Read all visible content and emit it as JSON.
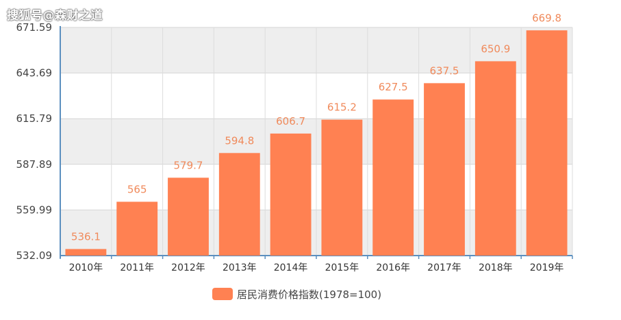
{
  "watermark": "搜狐号@森财之道",
  "chart_data": {
    "type": "bar",
    "categories": [
      "2010年",
      "2011年",
      "2012年",
      "2013年",
      "2014年",
      "2015年",
      "2016年",
      "2017年",
      "2018年",
      "2019年"
    ],
    "series": [
      {
        "name": "居民消费价格指数(1978=100)",
        "values": [
          536.1,
          565,
          579.7,
          594.8,
          606.7,
          615.2,
          627.5,
          637.5,
          650.9,
          669.8
        ]
      }
    ],
    "data_labels": [
      "536.1",
      "565",
      "579.7",
      "594.8",
      "606.7",
      "615.2",
      "627.5",
      "637.5",
      "650.9",
      "669.8"
    ],
    "y_ticks": [
      "532.09",
      "559.99",
      "587.89",
      "615.79",
      "643.69",
      "671.59"
    ],
    "ylim": [
      532.09,
      671.59
    ],
    "grid": true,
    "legend_position": "bottom-center",
    "bar_color": "#ff8152",
    "band_color": "#eeeeee",
    "axis_color": "#5b8fbf"
  }
}
